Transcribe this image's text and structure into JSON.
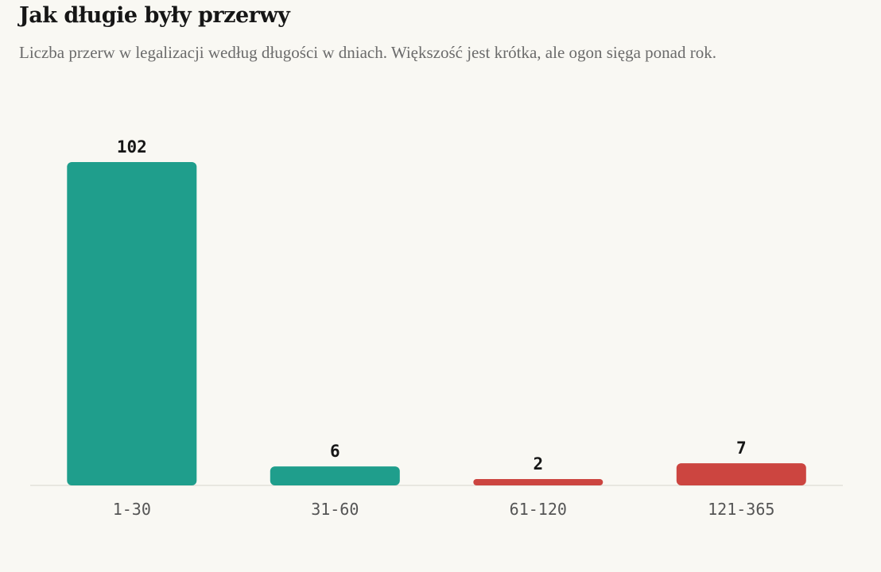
{
  "chart_data": {
    "type": "bar",
    "title": "Jak długie były przerwy",
    "subtitle": "Liczba przerw w legalizacji według długości w dniach. Większość jest krótka, ale ogon sięga ponad rok.",
    "categories": [
      "1-30",
      "31-60",
      "61-120",
      "121-365"
    ],
    "values": [
      102,
      6,
      2,
      7
    ],
    "colors": [
      "#1f9e8c",
      "#1f9e8c",
      "#cc4540",
      "#cc4540"
    ],
    "xlabel": "",
    "ylabel": "",
    "ylim": [
      0,
      102
    ],
    "grid": false,
    "legend": "none"
  }
}
